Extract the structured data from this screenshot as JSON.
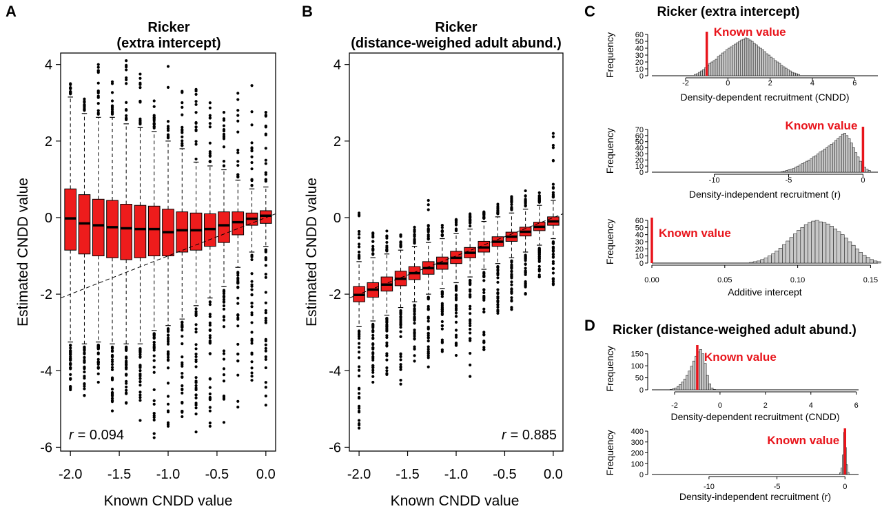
{
  "colors": {
    "box_fill": "#ee1c1c",
    "known_line": "#e8141b",
    "hist_fill": "#c8c8c8"
  },
  "panels": {
    "A": {
      "letter": "A",
      "title1": "Ricker",
      "title2": "(extra intercept)",
      "xlabel": "Known CNDD value",
      "ylabel": "Estimated CNDD value",
      "r_label": "r",
      "r_value": "= 0.094"
    },
    "B": {
      "letter": "B",
      "title1": "Ricker",
      "title2": "(distance-weighed adult abund.)",
      "xlabel": "Known CNDD value",
      "ylabel": "Estimated CNDD value",
      "r_label": "r",
      "r_value": "= 0.885"
    },
    "C": {
      "letter": "C",
      "title": "Ricker (extra intercept)"
    },
    "D": {
      "letter": "D",
      "title": "Ricker (distance-weighed adult abund.)"
    }
  },
  "chart_data": [
    {
      "id": "A",
      "type": "box",
      "x": [
        -2.0,
        -1.857,
        -1.714,
        -1.571,
        -1.429,
        -1.286,
        -1.143,
        -1.0,
        -0.857,
        -0.714,
        -0.571,
        -0.429,
        -0.286,
        -0.143,
        0.0
      ],
      "xticks": [
        -2.0,
        -1.5,
        -1.0,
        -0.5,
        0.0
      ],
      "xtick_labels": [
        "-2.0",
        "-1.5",
        "-1.0",
        "-0.5",
        "0.0"
      ],
      "yticks": [
        -6,
        -4,
        -2,
        0,
        2,
        4
      ],
      "ytick_labels": [
        "-6",
        "-4",
        "-2",
        "0",
        "2",
        "4"
      ],
      "xlim": [
        -2.1,
        0.1
      ],
      "ylim": [
        -6.1,
        4.3
      ],
      "boxes": [
        {
          "q1": -0.85,
          "median": -0.02,
          "q3": 0.75,
          "wlo": -3.25,
          "whi": 3.15,
          "out_lo": -4.5,
          "out_hi": 3.5
        },
        {
          "q1": -0.95,
          "median": -0.15,
          "q3": 0.6,
          "wlo": -3.3,
          "whi": 2.72,
          "out_lo": -4.65,
          "out_hi": 3.1
        },
        {
          "q1": -1.0,
          "median": -0.2,
          "q3": 0.48,
          "wlo": -3.25,
          "whi": 2.62,
          "out_lo": -4.3,
          "out_hi": 4.0
        },
        {
          "q1": -1.05,
          "median": -0.25,
          "q3": 0.45,
          "wlo": -3.3,
          "whi": 2.62,
          "out_lo": -5.05,
          "out_hi": 3.55
        },
        {
          "q1": -1.1,
          "median": -0.28,
          "q3": 0.35,
          "wlo": -3.3,
          "whi": 2.45,
          "out_lo": -4.85,
          "out_hi": 4.1
        },
        {
          "q1": -1.05,
          "median": -0.3,
          "q3": 0.32,
          "wlo": -3.3,
          "whi": 2.35,
          "out_lo": -5.3,
          "out_hi": 3.75
        },
        {
          "q1": -1.0,
          "median": -0.3,
          "q3": 0.3,
          "wlo": -2.95,
          "whi": 2.25,
          "out_lo": -5.75,
          "out_hi": 3.05
        },
        {
          "q1": -1.0,
          "median": -0.38,
          "q3": 0.22,
          "wlo": -2.82,
          "whi": 2.0,
          "out_lo": -5.45,
          "out_hi": 3.95
        },
        {
          "q1": -0.9,
          "median": -0.33,
          "q3": 0.15,
          "wlo": -2.65,
          "whi": 1.8,
          "out_lo": -5.2,
          "out_hi": 3.3
        },
        {
          "q1": -0.85,
          "median": -0.33,
          "q3": 0.12,
          "wlo": -2.3,
          "whi": 1.45,
          "out_lo": -5.6,
          "out_hi": 3.35
        },
        {
          "q1": -0.75,
          "median": -0.3,
          "q3": 0.1,
          "wlo": -2.1,
          "whi": 1.35,
          "out_lo": -5.45,
          "out_hi": 3.0
        },
        {
          "q1": -0.65,
          "median": -0.2,
          "q3": 0.15,
          "wlo": -1.8,
          "whi": 1.25,
          "out_lo": -5.35,
          "out_hi": 2.75
        },
        {
          "q1": -0.45,
          "median": -0.12,
          "q3": 0.15,
          "wlo": -1.3,
          "whi": 0.98,
          "out_lo": -4.95,
          "out_hi": 3.25
        },
        {
          "q1": -0.2,
          "median": -0.03,
          "q3": 0.12,
          "wlo": -0.9,
          "whi": 0.75,
          "out_lo": -4.25,
          "out_hi": 3.45
        },
        {
          "q1": -0.15,
          "median": 0.05,
          "q3": 0.18,
          "wlo": -0.75,
          "whi": 0.8,
          "out_lo": -4.9,
          "out_hi": 2.75
        }
      ],
      "reference_line": {
        "x": [
          -2.1,
          0.1
        ],
        "y": [
          -2.1,
          0.1
        ]
      },
      "r": 0.094
    },
    {
      "id": "B",
      "type": "box",
      "x": [
        -2.0,
        -1.857,
        -1.714,
        -1.571,
        -1.429,
        -1.286,
        -1.143,
        -1.0,
        -0.857,
        -0.714,
        -0.571,
        -0.429,
        -0.286,
        -0.143,
        0.0
      ],
      "xticks": [
        -2.0,
        -1.5,
        -1.0,
        -0.5,
        0.0
      ],
      "xtick_labels": [
        "-2.0",
        "-1.5",
        "-1.0",
        "-0.5",
        "0.0"
      ],
      "yticks": [
        -6,
        -4,
        -2,
        0,
        2,
        4
      ],
      "ytick_labels": [
        "-6",
        "-4",
        "-2",
        "0",
        "2",
        "4"
      ],
      "xlim": [
        -2.1,
        0.1
      ],
      "ylim": [
        -6.1,
        4.3
      ],
      "boxes": [
        {
          "q1": -2.2,
          "median": -2.02,
          "q3": -1.8,
          "wlo": -2.85,
          "whi": -1.15,
          "out_lo": -5.5,
          "out_hi": 0.12
        },
        {
          "q1": -2.08,
          "median": -1.88,
          "q3": -1.7,
          "wlo": -2.7,
          "whi": -1.05,
          "out_lo": -4.3,
          "out_hi": -0.4
        },
        {
          "q1": -1.92,
          "median": -1.75,
          "q3": -1.55,
          "wlo": -2.55,
          "whi": -0.95,
          "out_lo": -4.1,
          "out_hi": -0.35
        },
        {
          "q1": -1.78,
          "median": -1.6,
          "q3": -1.4,
          "wlo": -2.35,
          "whi": -0.85,
          "out_lo": -4.35,
          "out_hi": -0.45
        },
        {
          "q1": -1.62,
          "median": -1.45,
          "q3": -1.28,
          "wlo": -2.2,
          "whi": -0.75,
          "out_lo": -3.75,
          "out_hi": -0.25
        },
        {
          "q1": -1.48,
          "median": -1.32,
          "q3": -1.15,
          "wlo": -2.0,
          "whi": -0.65,
          "out_lo": -3.9,
          "out_hi": 0.45
        },
        {
          "q1": -1.35,
          "median": -1.2,
          "q3": -1.03,
          "wlo": -1.85,
          "whi": -0.55,
          "out_lo": -3.5,
          "out_hi": -0.2
        },
        {
          "q1": -1.2,
          "median": -1.05,
          "q3": -0.88,
          "wlo": -1.7,
          "whi": -0.42,
          "out_lo": -3.6,
          "out_hi": -0.05
        },
        {
          "q1": -1.05,
          "median": -0.92,
          "q3": -0.78,
          "wlo": -1.55,
          "whi": -0.3,
          "out_lo": -4.15,
          "out_hi": 0.1
        },
        {
          "q1": -0.9,
          "median": -0.78,
          "q3": -0.62,
          "wlo": -1.35,
          "whi": -0.1,
          "out_lo": -3.45,
          "out_hi": 0.15
        },
        {
          "q1": -0.75,
          "median": -0.63,
          "q3": -0.5,
          "wlo": -1.2,
          "whi": 0.02,
          "out_lo": -2.5,
          "out_hi": 0.35
        },
        {
          "q1": -0.62,
          "median": -0.5,
          "q3": -0.38,
          "wlo": -1.05,
          "whi": 0.12,
          "out_lo": -2.4,
          "out_hi": 0.55
        },
        {
          "q1": -0.48,
          "median": -0.37,
          "q3": -0.25,
          "wlo": -0.9,
          "whi": 0.22,
          "out_lo": -2.0,
          "out_hi": 0.7
        },
        {
          "q1": -0.34,
          "median": -0.24,
          "q3": -0.12,
          "wlo": -0.72,
          "whi": 0.32,
          "out_lo": -1.55,
          "out_hi": 0.65
        },
        {
          "q1": -0.2,
          "median": -0.1,
          "q3": 0.02,
          "wlo": -0.55,
          "whi": 0.45,
          "out_lo": -1.75,
          "out_hi": 2.2
        }
      ],
      "reference_line": {
        "x": [
          -2.1,
          0.1
        ],
        "y": [
          -2.1,
          0.1
        ]
      },
      "r": 0.885
    },
    {
      "id": "C1",
      "type": "histogram",
      "xlabel": "Density-dependent recruitment (CNDD)",
      "ylabel": "Frequency",
      "xlim": [
        -3.6,
        7.1
      ],
      "ylim": [
        0,
        60
      ],
      "xticks": [
        -2,
        0,
        2,
        4,
        6
      ],
      "xtick_labels": [
        "-2",
        "0",
        "2",
        "4",
        "6"
      ],
      "yticks": [
        0,
        10,
        20,
        30,
        40,
        50,
        60
      ],
      "ytick_labels": [
        "0",
        "10",
        "20",
        "30",
        "40",
        "50",
        "60"
      ],
      "bin_start": -1.6,
      "bin_width": 0.1,
      "counts": [
        2,
        3,
        5,
        7,
        9,
        12,
        15,
        18,
        20,
        22,
        24,
        28,
        30,
        33,
        35,
        38,
        40,
        42,
        44,
        46,
        48,
        50,
        52,
        53,
        55,
        54,
        52,
        50,
        47,
        45,
        42,
        40,
        38,
        35,
        32,
        30,
        27,
        25,
        22,
        20,
        18,
        15,
        13,
        11,
        9,
        7,
        5,
        4,
        3,
        2
      ],
      "known_value": -1.0,
      "known_label": "Known value"
    },
    {
      "id": "C2",
      "type": "histogram",
      "xlabel": "Density-independent recruitment (r)",
      "ylabel": "Frequency",
      "xlim": [
        -14.2,
        1.0
      ],
      "ylim": [
        0,
        70
      ],
      "xticks": [
        -10,
        -5,
        0
      ],
      "xtick_labels": [
        "-10",
        "-5",
        "0"
      ],
      "yticks": [
        0,
        10,
        20,
        30,
        40,
        50,
        60,
        70
      ],
      "ytick_labels": [
        "0",
        "10",
        "20",
        "30",
        "40",
        "50",
        "60",
        "70"
      ],
      "bin_start": -5.5,
      "bin_width": 0.15,
      "counts": [
        1,
        2,
        3,
        4,
        5,
        6,
        8,
        10,
        12,
        14,
        16,
        18,
        20,
        22,
        25,
        27,
        30,
        33,
        35,
        38,
        40,
        43,
        46,
        48,
        52,
        55,
        58,
        62,
        64,
        60,
        55,
        48,
        40,
        32,
        25,
        18,
        12,
        8,
        5,
        3
      ],
      "known_value": 0.0,
      "known_label": "Known value"
    },
    {
      "id": "C3",
      "type": "histogram",
      "xlabel": "Additive intercept",
      "ylabel": "Frequency",
      "xlim": [
        0,
        0.155
      ],
      "ylim": [
        0,
        60
      ],
      "xticks": [
        0.0,
        0.05,
        0.1,
        0.15
      ],
      "xtick_labels": [
        "0.00",
        "0.05",
        "0.10",
        "0.15"
      ],
      "yticks": [
        0,
        10,
        20,
        30,
        40,
        50,
        60
      ],
      "ytick_labels": [
        "0",
        "10",
        "20",
        "30",
        "40",
        "50",
        "60"
      ],
      "bin_start": 0.067,
      "bin_width": 0.0025,
      "counts": [
        1,
        2,
        3,
        5,
        7,
        10,
        13,
        17,
        21,
        26,
        31,
        36,
        41,
        46,
        50,
        54,
        57,
        59,
        60,
        58,
        57,
        55,
        52,
        48,
        44,
        40,
        35,
        30,
        25,
        20,
        15,
        11,
        8,
        5,
        3,
        2
      ],
      "known_value": 0.0,
      "known_label": "Known value"
    },
    {
      "id": "D1",
      "type": "histogram",
      "xlabel": "Density-dependent recruitment (CNDD)",
      "ylabel": "Frequency",
      "xlim": [
        -3.0,
        6.1
      ],
      "ylim": [
        0,
        175
      ],
      "xticks": [
        -2,
        0,
        2,
        4,
        6
      ],
      "xtick_labels": [
        "-2",
        "0",
        "2",
        "4",
        "6"
      ],
      "yticks": [
        0,
        50,
        100,
        150
      ],
      "ytick_labels": [
        "0",
        "50",
        "100",
        "150"
      ],
      "bin_start": -2.2,
      "bin_width": 0.1,
      "counts": [
        2,
        4,
        8,
        14,
        22,
        32,
        45,
        60,
        78,
        98,
        120,
        140,
        158,
        168,
        150,
        110,
        60,
        25,
        8,
        2
      ],
      "known_value": -1.0,
      "known_label": "Known value"
    },
    {
      "id": "D2",
      "type": "histogram",
      "xlabel": "Density-independent recruitment (r)",
      "ylabel": "Frequency",
      "xlim": [
        -14.2,
        1.0
      ],
      "ylim": [
        0,
        400
      ],
      "xticks": [
        -10,
        -5,
        0
      ],
      "xtick_labels": [
        "-10",
        "-5",
        "0"
      ],
      "yticks": [
        0,
        100,
        200,
        300,
        400
      ],
      "ytick_labels": [
        "0",
        "100",
        "200",
        "300",
        "400"
      ],
      "bin_start": -0.4,
      "bin_width": 0.1,
      "counts": [
        15,
        60,
        180,
        390,
        250,
        90,
        20
      ],
      "known_value": 0.0,
      "known_label": "Known value"
    }
  ]
}
